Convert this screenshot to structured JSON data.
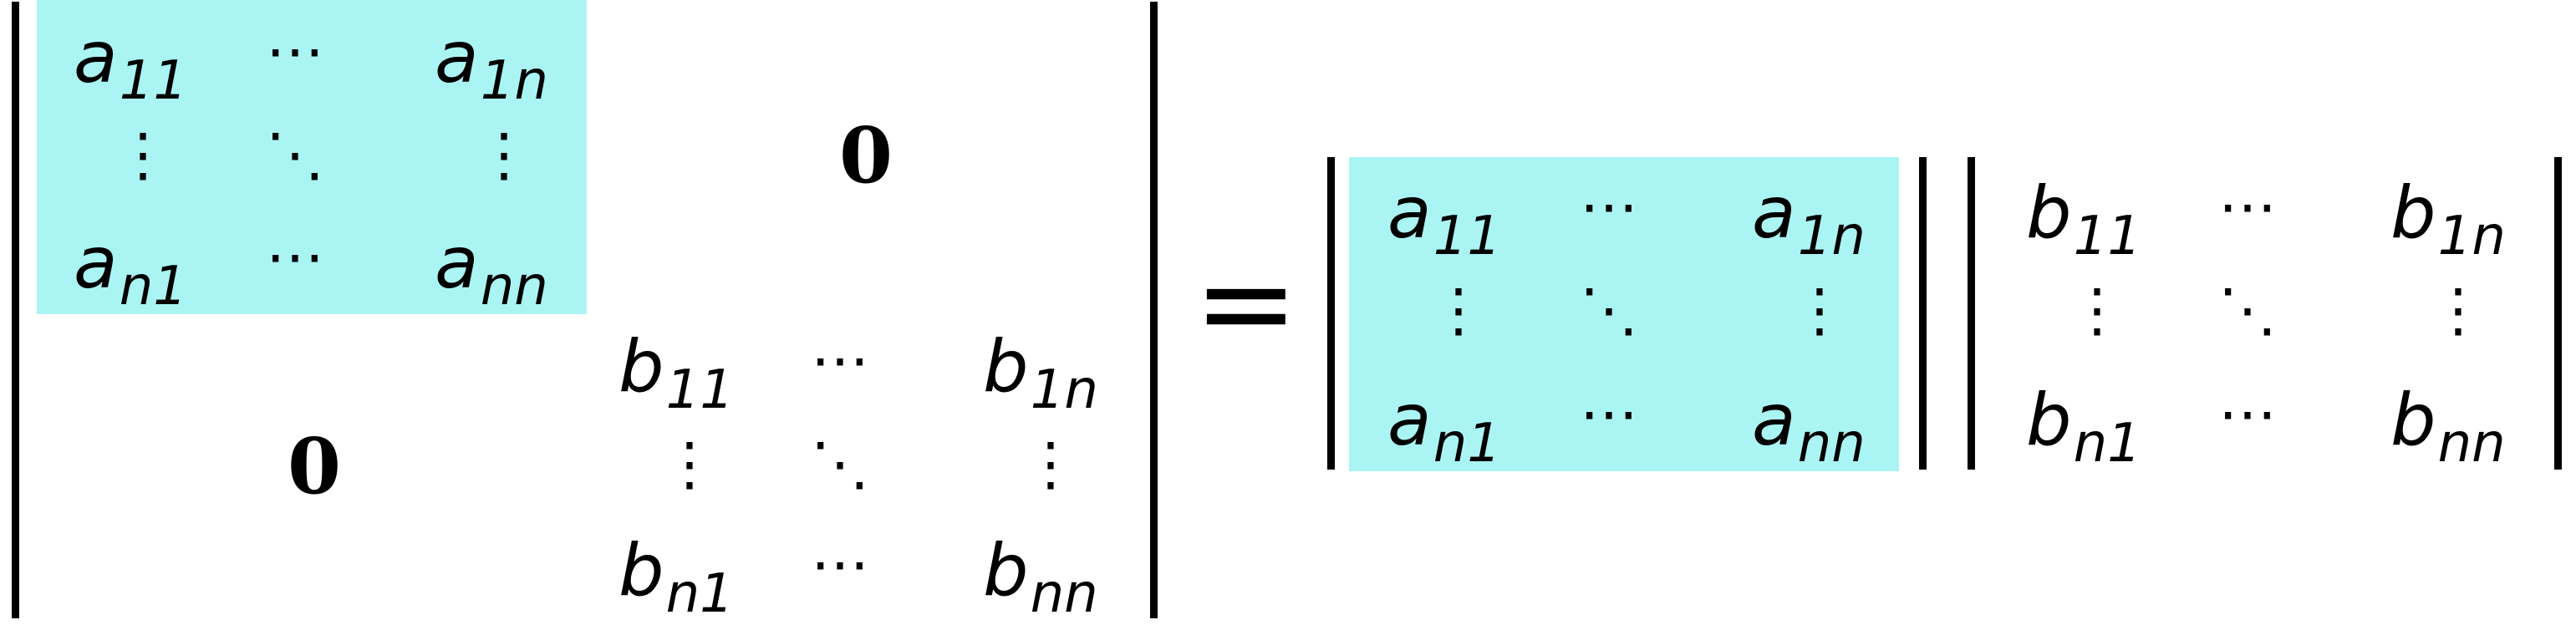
{
  "colors": {
    "highlight": "#aaf4f4",
    "ink": "#000000"
  },
  "left_block": {
    "a": {
      "top_left": "a",
      "top_left_sub": "11",
      "top_right": "a",
      "top_right_sub": "1n",
      "bottom_left": "a",
      "bottom_left_sub": "n1",
      "bottom_right": "a",
      "bottom_right_sub": "nn"
    },
    "zero_top_right": "0",
    "zero_bottom_left": "0",
    "b": {
      "top_left": "b",
      "top_left_sub": "11",
      "top_right": "b",
      "top_right_sub": "1n",
      "bottom_left": "b",
      "bottom_left_sub": "n1",
      "bottom_right": "b",
      "bottom_right_sub": "nn"
    }
  },
  "equals": "=",
  "right_a": {
    "top_left": "a",
    "top_left_sub": "11",
    "top_right": "a",
    "top_right_sub": "1n",
    "bottom_left": "a",
    "bottom_left_sub": "n1",
    "bottom_right": "a",
    "bottom_right_sub": "nn"
  },
  "right_b": {
    "top_left": "b",
    "top_left_sub": "11",
    "top_right": "b",
    "top_right_sub": "1n",
    "bottom_left": "b",
    "bottom_left_sub": "n1",
    "bottom_right": "b",
    "bottom_right_sub": "nn"
  },
  "symbols": {
    "hdots": "⋯",
    "vdots": "⋮",
    "ddots": "⋱"
  }
}
